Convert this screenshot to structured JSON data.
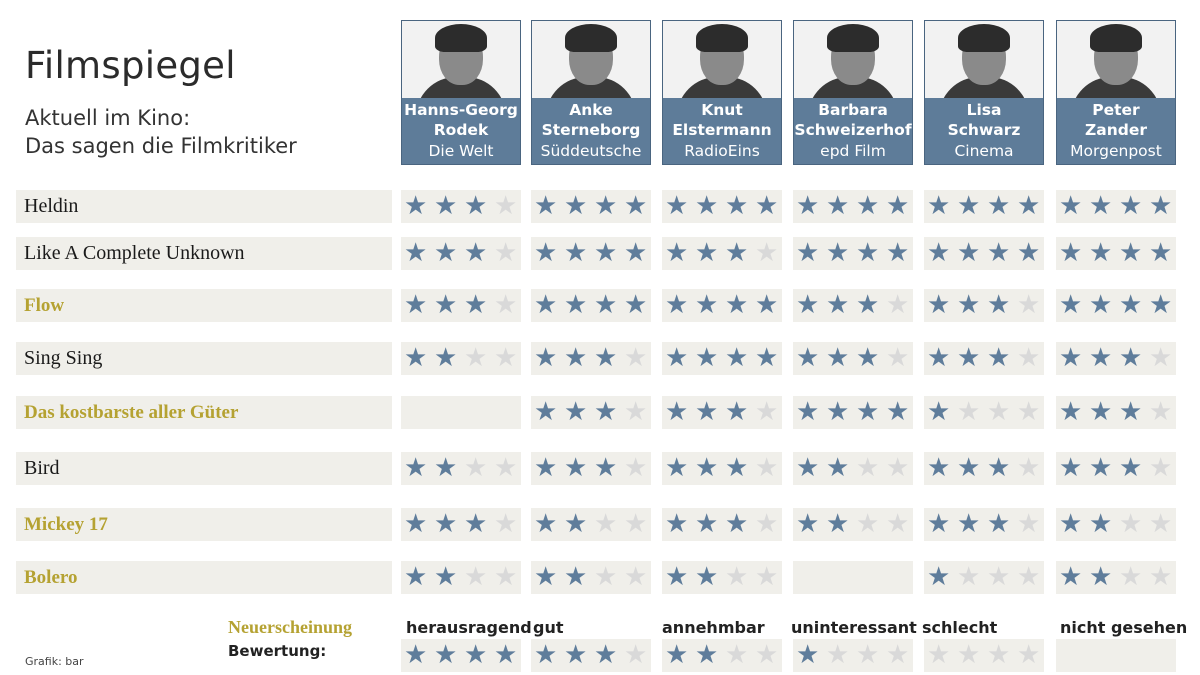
{
  "title": "Filmspiegel",
  "subtitle_line1": "Aktuell im Kino:",
  "subtitle_line2": "Das sagen die Filmkritiker",
  "star_char": "★",
  "colors": {
    "header_bg": "#5e7c99",
    "star_on": "#5f7d9b",
    "star_off": "#d9d9d9",
    "new_release": "#b5a232",
    "row_bg": "#f0efea"
  },
  "critics": [
    {
      "name_line1": "Hanns-Georg",
      "name_line2": "Rodek",
      "outlet": "Die Welt"
    },
    {
      "name_line1": "Anke",
      "name_line2": "Sterneborg",
      "outlet": "Süddeutsche"
    },
    {
      "name_line1": "Knut",
      "name_line2": "Elstermann",
      "outlet": "RadioEins"
    },
    {
      "name_line1": "Barbara",
      "name_line2": "Schweizerhof",
      "outlet": "epd Film"
    },
    {
      "name_line1": "Lisa",
      "name_line2": "Schwarz",
      "outlet": "Cinema"
    },
    {
      "name_line1": "Peter",
      "name_line2": "Zander",
      "outlet": "Morgenpost"
    }
  ],
  "movies": [
    {
      "title": "Heldin",
      "new": false,
      "ratings": [
        3,
        4,
        4,
        4,
        4,
        4
      ]
    },
    {
      "title": "Like A Complete Unknown",
      "new": false,
      "ratings": [
        3,
        4,
        3,
        4,
        4,
        4
      ]
    },
    {
      "title": "Flow",
      "new": true,
      "ratings": [
        3,
        4,
        4,
        3,
        3,
        4
      ]
    },
    {
      "title": "Sing Sing",
      "new": false,
      "ratings": [
        2,
        3,
        4,
        3,
        3,
        3
      ]
    },
    {
      "title": "Das kostbarste aller Güter",
      "new": true,
      "ratings": [
        null,
        3,
        3,
        4,
        1,
        3
      ]
    },
    {
      "title": "Bird",
      "new": false,
      "ratings": [
        2,
        3,
        3,
        2,
        3,
        3
      ]
    },
    {
      "title": "Mickey 17",
      "new": true,
      "ratings": [
        3,
        2,
        3,
        2,
        3,
        2
      ]
    },
    {
      "title": "Bolero",
      "new": true,
      "ratings": [
        2,
        2,
        2,
        null,
        1,
        2
      ]
    }
  ],
  "legend": {
    "new_release_label": "Neuerscheinung",
    "rating_label": "Bewertung:",
    "levels": [
      {
        "label": "herausragend",
        "stars": 4
      },
      {
        "label": "gut",
        "stars": 3
      },
      {
        "label": "annehmbar",
        "stars": 2
      },
      {
        "label": "uninteressant",
        "stars": 1
      },
      {
        "label": "schlecht",
        "stars": 0
      },
      {
        "label": "nicht gesehen",
        "stars": null
      }
    ]
  },
  "credit": "Grafik: bar"
}
